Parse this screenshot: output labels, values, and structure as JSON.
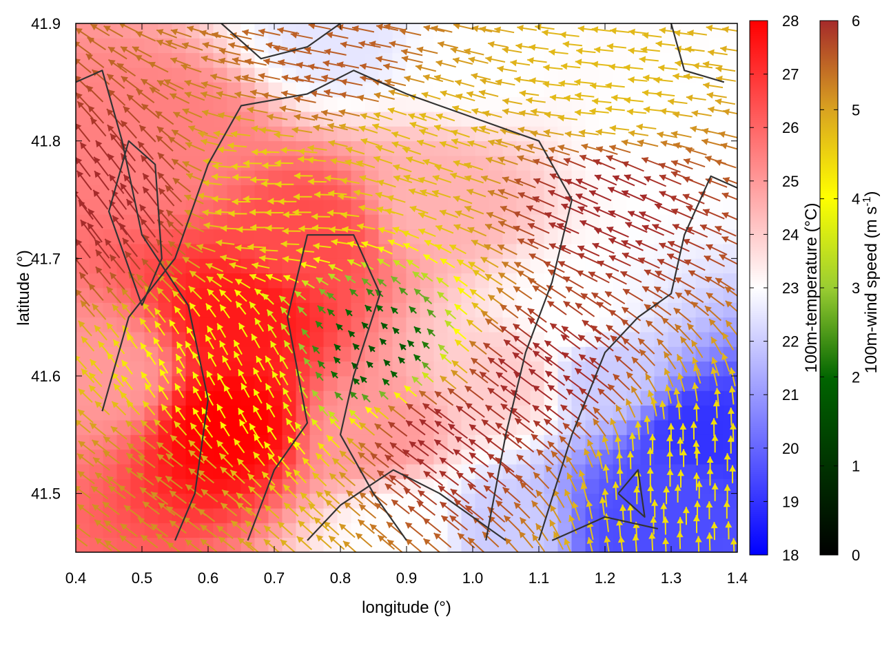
{
  "chart_data": {
    "type": "heatmap",
    "title": "",
    "xlabel": "longitude (°)",
    "ylabel": "latitude (°)",
    "xlim": [
      0.4,
      1.4
    ],
    "ylim": [
      41.45,
      41.9
    ],
    "x_ticks": [
      {
        "value": 0.4,
        "label": "0.4"
      },
      {
        "value": 0.5,
        "label": "0.5"
      },
      {
        "value": 0.6,
        "label": "0.6"
      },
      {
        "value": 0.7,
        "label": "0.7"
      },
      {
        "value": 0.8,
        "label": "0.8"
      },
      {
        "value": 0.9,
        "label": "0.9"
      },
      {
        "value": 1.0,
        "label": "1.0"
      },
      {
        "value": 1.1,
        "label": "1.1"
      },
      {
        "value": 1.2,
        "label": "1.2"
      },
      {
        "value": 1.3,
        "label": "1.3"
      },
      {
        "value": 1.4,
        "label": "1.4"
      }
    ],
    "y_ticks": [
      {
        "value": 41.5,
        "label": "41.5"
      },
      {
        "value": 41.6,
        "label": "41.6"
      },
      {
        "value": 41.7,
        "label": "41.7"
      },
      {
        "value": 41.8,
        "label": "41.8"
      },
      {
        "value": 41.9,
        "label": "41.9"
      }
    ],
    "grid": false,
    "colorbars": [
      {
        "name": "temperature",
        "label": "100m-temperature (°C)",
        "range": [
          18,
          28
        ],
        "ticks": [
          "18",
          "19",
          "20",
          "21",
          "22",
          "23",
          "24",
          "25",
          "26",
          "27",
          "28"
        ],
        "colors": [
          "#0000ff",
          "#ffffff",
          "#ff0000"
        ]
      },
      {
        "name": "wind",
        "label_main": "100m-wind speed (m s",
        "label_sup": "-1",
        "label_end": ")",
        "range": [
          0,
          6
        ],
        "ticks": [
          "0",
          "1",
          "2",
          "3",
          "4",
          "5",
          "6"
        ],
        "colors": [
          "#000000",
          "#006400",
          "#9acd32",
          "#ffff00",
          "#daa520",
          "#a52a2a"
        ]
      }
    ],
    "temperature_regions": [
      {
        "lon": 0.65,
        "lat": 41.65,
        "value": 27.5
      },
      {
        "lon": 0.63,
        "lat": 41.56,
        "value": 28.0
      },
      {
        "lon": 0.75,
        "lat": 41.72,
        "value": 26.5
      },
      {
        "lon": 0.55,
        "lat": 41.8,
        "value": 25.5
      },
      {
        "lon": 0.45,
        "lat": 41.6,
        "value": 25.0
      },
      {
        "lon": 0.85,
        "lat": 41.55,
        "value": 25.0
      },
      {
        "lon": 0.95,
        "lat": 41.75,
        "value": 24.5
      },
      {
        "lon": 1.05,
        "lat": 41.6,
        "value": 24.0
      },
      {
        "lon": 1.15,
        "lat": 41.65,
        "value": 23.0
      },
      {
        "lon": 1.2,
        "lat": 41.6,
        "value": 22.0
      },
      {
        "lon": 1.3,
        "lat": 41.5,
        "value": 19.5
      },
      {
        "lon": 1.35,
        "lat": 41.55,
        "value": 19.0
      },
      {
        "lon": 1.25,
        "lat": 41.47,
        "value": 19.5
      },
      {
        "lon": 1.0,
        "lat": 41.87,
        "value": 23.0
      },
      {
        "lon": 0.8,
        "lat": 41.89,
        "value": 22.5
      },
      {
        "lon": 1.3,
        "lat": 41.8,
        "value": 23.0
      },
      {
        "lon": 1.05,
        "lat": 41.47,
        "value": 22.0
      },
      {
        "lon": 0.9,
        "lat": 41.47,
        "value": 23.0
      }
    ],
    "wind_regions": [
      {
        "lon": 0.45,
        "lat": 41.75,
        "u": -0.6,
        "v": 0.8,
        "speed": 6.0
      },
      {
        "lon": 0.5,
        "lat": 41.5,
        "u": -0.8,
        "v": 0.6,
        "speed": 5.0
      },
      {
        "lon": 0.65,
        "lat": 41.6,
        "u": -0.5,
        "v": 0.9,
        "speed": 3.5
      },
      {
        "lon": 0.7,
        "lat": 41.75,
        "u": -1.0,
        "v": 0.0,
        "speed": 4.2
      },
      {
        "lon": 0.85,
        "lat": 41.62,
        "u": -0.7,
        "v": 0.7,
        "speed": 1.0
      },
      {
        "lon": 0.95,
        "lat": 41.55,
        "u": -0.8,
        "v": 0.6,
        "speed": 6.0
      },
      {
        "lon": 1.1,
        "lat": 41.6,
        "u": -0.8,
        "v": 0.6,
        "speed": 6.0
      },
      {
        "lon": 1.2,
        "lat": 41.75,
        "u": -0.9,
        "v": 0.4,
        "speed": 6.0
      },
      {
        "lon": 1.2,
        "lat": 41.84,
        "u": -1.0,
        "v": 0.1,
        "speed": 4.5
      },
      {
        "lon": 1.32,
        "lat": 41.52,
        "u": 0.0,
        "v": 1.0,
        "speed": 4.0
      },
      {
        "lon": 0.8,
        "lat": 41.86,
        "u": -1.0,
        "v": 0.2,
        "speed": 5.5
      },
      {
        "lon": 0.9,
        "lat": 41.8,
        "u": -0.9,
        "v": 0.3,
        "speed": 4.5
      }
    ],
    "contours": [
      [
        [
          0.55,
          41.46
        ],
        [
          0.58,
          41.5
        ],
        [
          0.6,
          41.58
        ],
        [
          0.57,
          41.66
        ],
        [
          0.5,
          41.72
        ],
        [
          0.47,
          41.8
        ],
        [
          0.44,
          41.86
        ],
        [
          0.4,
          41.85
        ]
      ],
      [
        [
          0.66,
          41.46
        ],
        [
          0.7,
          41.52
        ],
        [
          0.75,
          41.56
        ],
        [
          0.72,
          41.65
        ],
        [
          0.75,
          41.72
        ],
        [
          0.82,
          41.72
        ],
        [
          0.86,
          41.67
        ],
        [
          0.82,
          41.6
        ],
        [
          0.8,
          41.55
        ],
        [
          0.85,
          41.5
        ],
        [
          0.9,
          41.46
        ]
      ],
      [
        [
          0.44,
          41.57
        ],
        [
          0.48,
          41.65
        ],
        [
          0.55,
          41.7
        ],
        [
          0.6,
          41.78
        ],
        [
          0.65,
          41.83
        ],
        [
          0.75,
          41.84
        ],
        [
          0.82,
          41.86
        ],
        [
          0.9,
          41.84
        ],
        [
          1.0,
          41.82
        ],
        [
          1.1,
          41.8
        ],
        [
          1.15,
          41.75
        ],
        [
          1.12,
          41.68
        ],
        [
          1.08,
          41.62
        ],
        [
          1.05,
          41.55
        ],
        [
          1.02,
          41.46
        ]
      ],
      [
        [
          1.1,
          41.46
        ],
        [
          1.15,
          41.55
        ],
        [
          1.2,
          41.62
        ],
        [
          1.25,
          41.65
        ],
        [
          1.3,
          41.67
        ],
        [
          1.32,
          41.72
        ],
        [
          1.36,
          41.77
        ],
        [
          1.4,
          41.76
        ]
      ],
      [
        [
          1.05,
          41.46
        ],
        [
          0.95,
          41.5
        ],
        [
          0.88,
          41.52
        ],
        [
          0.8,
          41.49
        ],
        [
          0.75,
          41.46
        ]
      ],
      [
        [
          0.5,
          41.66
        ],
        [
          0.45,
          41.74
        ],
        [
          0.48,
          41.8
        ],
        [
          0.52,
          41.78
        ],
        [
          0.53,
          41.7
        ],
        [
          0.5,
          41.66
        ]
      ],
      [
        [
          1.22,
          41.5
        ],
        [
          1.25,
          41.52
        ],
        [
          1.26,
          41.48
        ],
        [
          1.22,
          41.5
        ]
      ],
      [
        [
          1.12,
          41.46
        ],
        [
          1.2,
          41.48
        ],
        [
          1.28,
          41.47
        ]
      ],
      [
        [
          0.62,
          41.9
        ],
        [
          0.68,
          41.87
        ],
        [
          0.75,
          41.88
        ],
        [
          0.8,
          41.9
        ]
      ],
      [
        [
          1.3,
          41.9
        ],
        [
          1.32,
          41.86
        ],
        [
          1.38,
          41.85
        ]
      ]
    ]
  }
}
